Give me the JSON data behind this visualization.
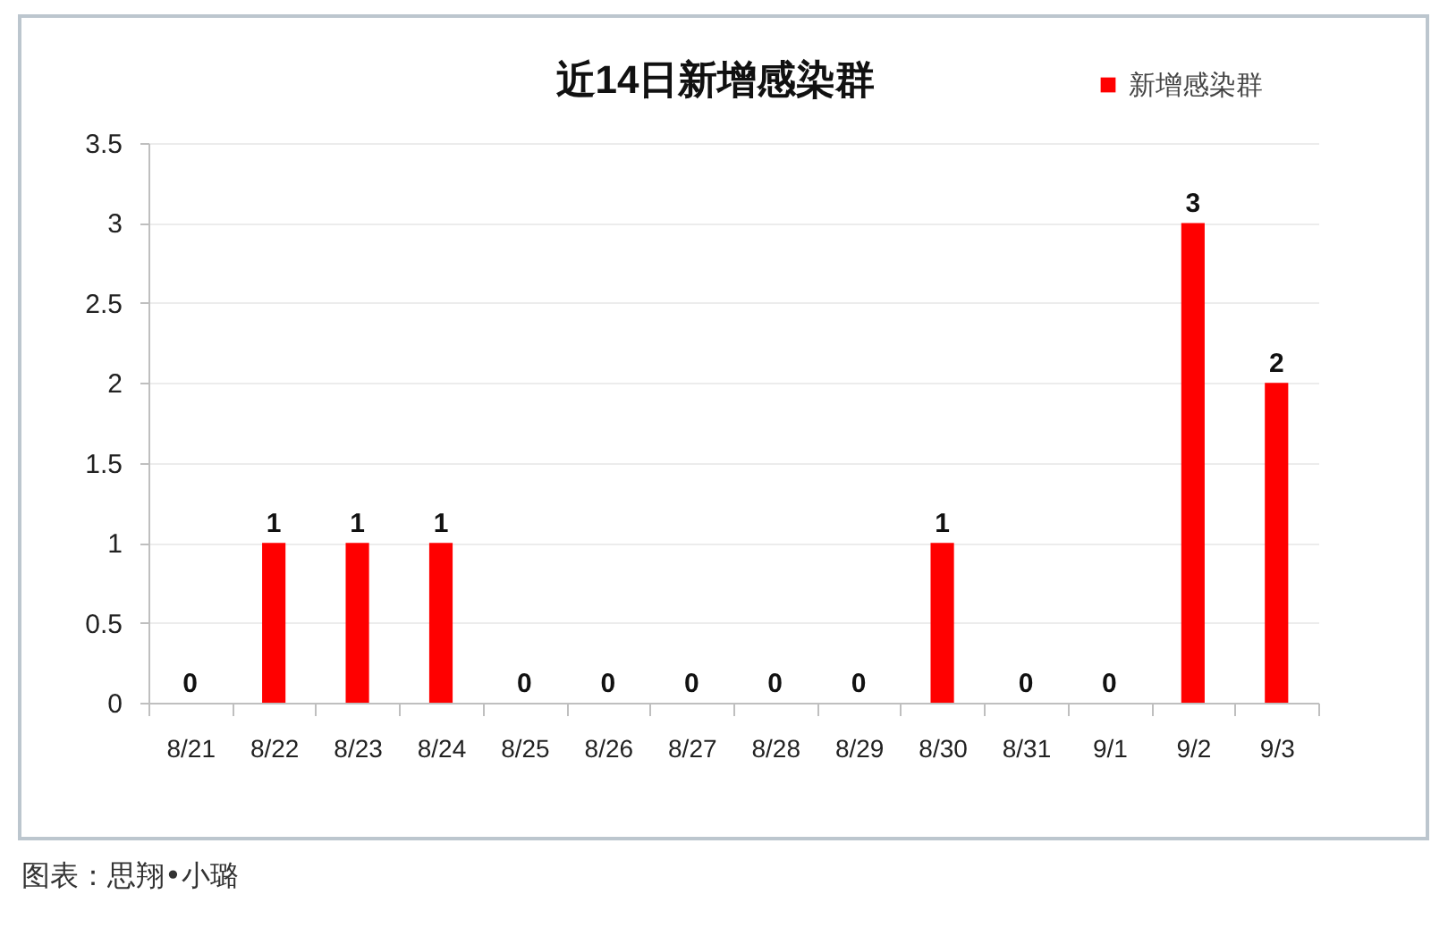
{
  "chart_data": {
    "type": "bar",
    "title": "近14日新增感染群",
    "categories": [
      "8/21",
      "8/22",
      "8/23",
      "8/24",
      "8/25",
      "8/26",
      "8/27",
      "8/28",
      "8/29",
      "8/30",
      "8/31",
      "9/1",
      "9/2",
      "9/3"
    ],
    "series": [
      {
        "name": "新增感染群",
        "color": "#ff0000",
        "values": [
          0,
          1,
          1,
          1,
          0,
          0,
          0,
          0,
          0,
          1,
          0,
          0,
          3,
          2
        ]
      }
    ],
    "ylim": [
      0,
      3.5
    ],
    "yticks": [
      0,
      0.5,
      1,
      1.5,
      2,
      2.5,
      3,
      3.5
    ],
    "grid": "y",
    "legend": "top right",
    "data_labels": true,
    "annotations": [
      "图表：思翔•小璐"
    ]
  }
}
